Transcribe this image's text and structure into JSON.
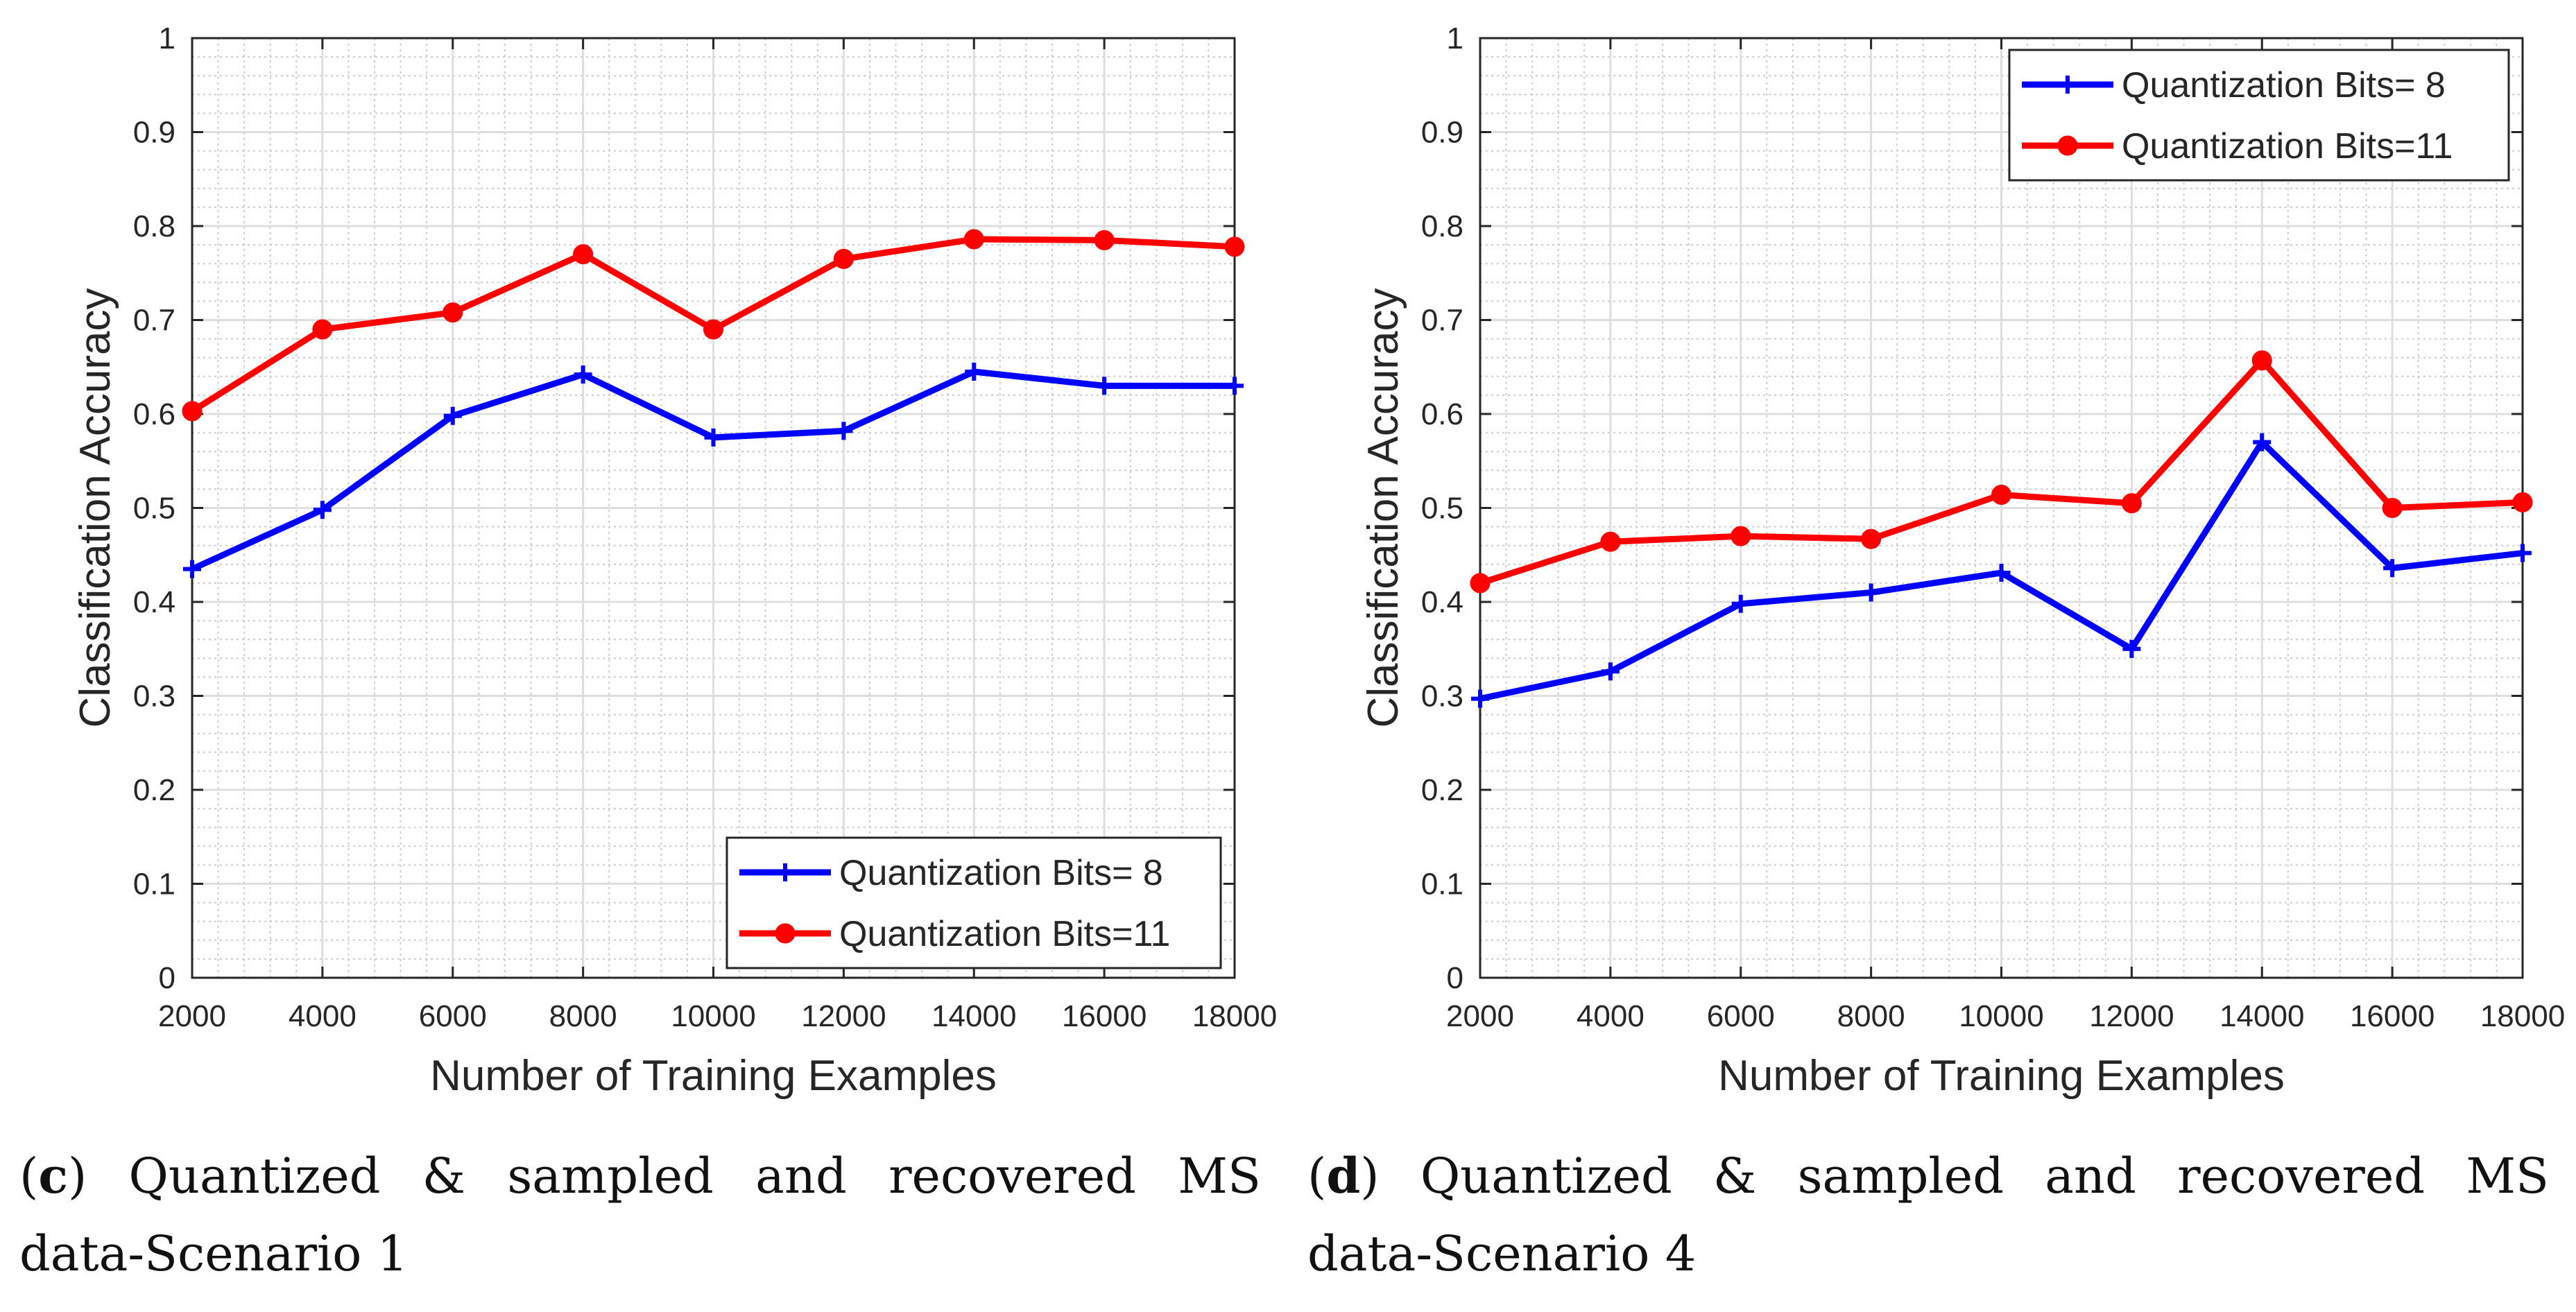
{
  "figure": {
    "panels": [
      {
        "caption": {
          "letter": "c",
          "words": [
            "Quantized",
            "&",
            "sampled",
            "and",
            "recovered",
            "MS"
          ],
          "line2": "data-Scenario 1"
        }
      },
      {
        "caption": {
          "letter": "d",
          "words": [
            "Quantized",
            "&",
            "sampled",
            "and",
            "recovered",
            "MS"
          ],
          "line2": "data-Scenario 4"
        }
      }
    ]
  },
  "chart_data": [
    {
      "type": "line",
      "title": "",
      "xlabel": "Number of Training Examples",
      "ylabel": "Classification Accuracy",
      "xlim": [
        2000,
        18000
      ],
      "ylim": [
        0,
        1
      ],
      "x": [
        2000,
        4000,
        6000,
        8000,
        10000,
        12000,
        14000,
        16000,
        18000
      ],
      "x_ticks": [
        2000,
        4000,
        6000,
        8000,
        10000,
        12000,
        14000,
        16000,
        18000
      ],
      "x_tick_labels": [
        "2000",
        "4000",
        "6000",
        "8000",
        "10000",
        "12000",
        "14000",
        "16000",
        "18000"
      ],
      "y_ticks": [
        0,
        0.1,
        0.2,
        0.3,
        0.4,
        0.5,
        0.6,
        0.7,
        0.8,
        0.9,
        1
      ],
      "y_tick_labels": [
        "0",
        "0.1",
        "0.2",
        "0.3",
        "0.4",
        "0.5",
        "0.6",
        "0.7",
        "0.8",
        "0.9",
        "1"
      ],
      "grid": true,
      "minor_grid": true,
      "legend": "bottom-right",
      "series": [
        {
          "name": "Quantization Bits= 8",
          "color": "#0000ff",
          "marker": "plus",
          "values": [
            0.435,
            0.498,
            0.598,
            0.642,
            0.575,
            0.582,
            0.645,
            0.63,
            0.63
          ]
        },
        {
          "name": "Quantization Bits=11",
          "color": "#ff0000",
          "marker": "circle",
          "values": [
            0.603,
            0.69,
            0.708,
            0.77,
            0.69,
            0.765,
            0.786,
            0.785,
            0.778
          ]
        }
      ]
    },
    {
      "type": "line",
      "title": "",
      "xlabel": "Number of Training Examples",
      "ylabel": "Classification Accuracy",
      "xlim": [
        2000,
        18000
      ],
      "ylim": [
        0,
        1
      ],
      "x": [
        2000,
        4000,
        6000,
        8000,
        10000,
        12000,
        14000,
        16000,
        18000
      ],
      "x_ticks": [
        2000,
        4000,
        6000,
        8000,
        10000,
        12000,
        14000,
        16000,
        18000
      ],
      "x_tick_labels": [
        "2000",
        "4000",
        "6000",
        "8000",
        "10000",
        "12000",
        "14000",
        "16000",
        "18000"
      ],
      "y_ticks": [
        0,
        0.1,
        0.2,
        0.3,
        0.4,
        0.5,
        0.6,
        0.7,
        0.8,
        0.9,
        1
      ],
      "y_tick_labels": [
        "0",
        "0.1",
        "0.2",
        "0.3",
        "0.4",
        "0.5",
        "0.6",
        "0.7",
        "0.8",
        "0.9",
        "1"
      ],
      "grid": true,
      "minor_grid": true,
      "legend": "top-right",
      "series": [
        {
          "name": "Quantization Bits= 8",
          "color": "#0000ff",
          "marker": "plus",
          "values": [
            0.297,
            0.326,
            0.398,
            0.41,
            0.431,
            0.35,
            0.57,
            0.436,
            0.452
          ]
        },
        {
          "name": "Quantization Bits=11",
          "color": "#ff0000",
          "marker": "circle",
          "values": [
            0.42,
            0.464,
            0.47,
            0.467,
            0.514,
            0.505,
            0.657,
            0.5,
            0.506
          ]
        }
      ]
    }
  ]
}
